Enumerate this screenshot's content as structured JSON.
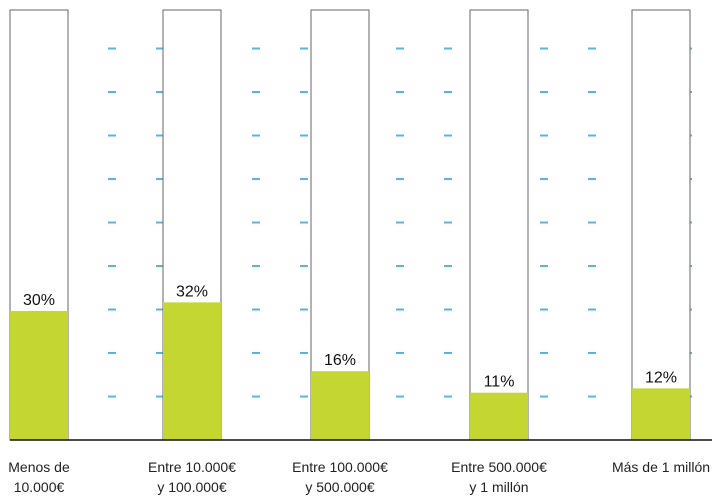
{
  "chart_data": {
    "type": "bar",
    "categories": [
      [
        "Menos de",
        "10.000€"
      ],
      [
        "Entre 10.000€",
        "y 100.000€"
      ],
      [
        "Entre 100.000€",
        "y 500.000€"
      ],
      [
        "Entre 500.000€",
        "y 1 millón"
      ],
      [
        "Más de 1 millón"
      ]
    ],
    "values": [
      30,
      32,
      16,
      11,
      12
    ],
    "value_labels": [
      "30%",
      "32%",
      "16%",
      "11%",
      "12%"
    ],
    "ylim": [
      0,
      100
    ],
    "grid": "dashed horizontal ticks",
    "colors": {
      "bar": "#c3d631",
      "outline": "#666666",
      "grid": "#5ab4de",
      "axis": "#111111"
    }
  }
}
